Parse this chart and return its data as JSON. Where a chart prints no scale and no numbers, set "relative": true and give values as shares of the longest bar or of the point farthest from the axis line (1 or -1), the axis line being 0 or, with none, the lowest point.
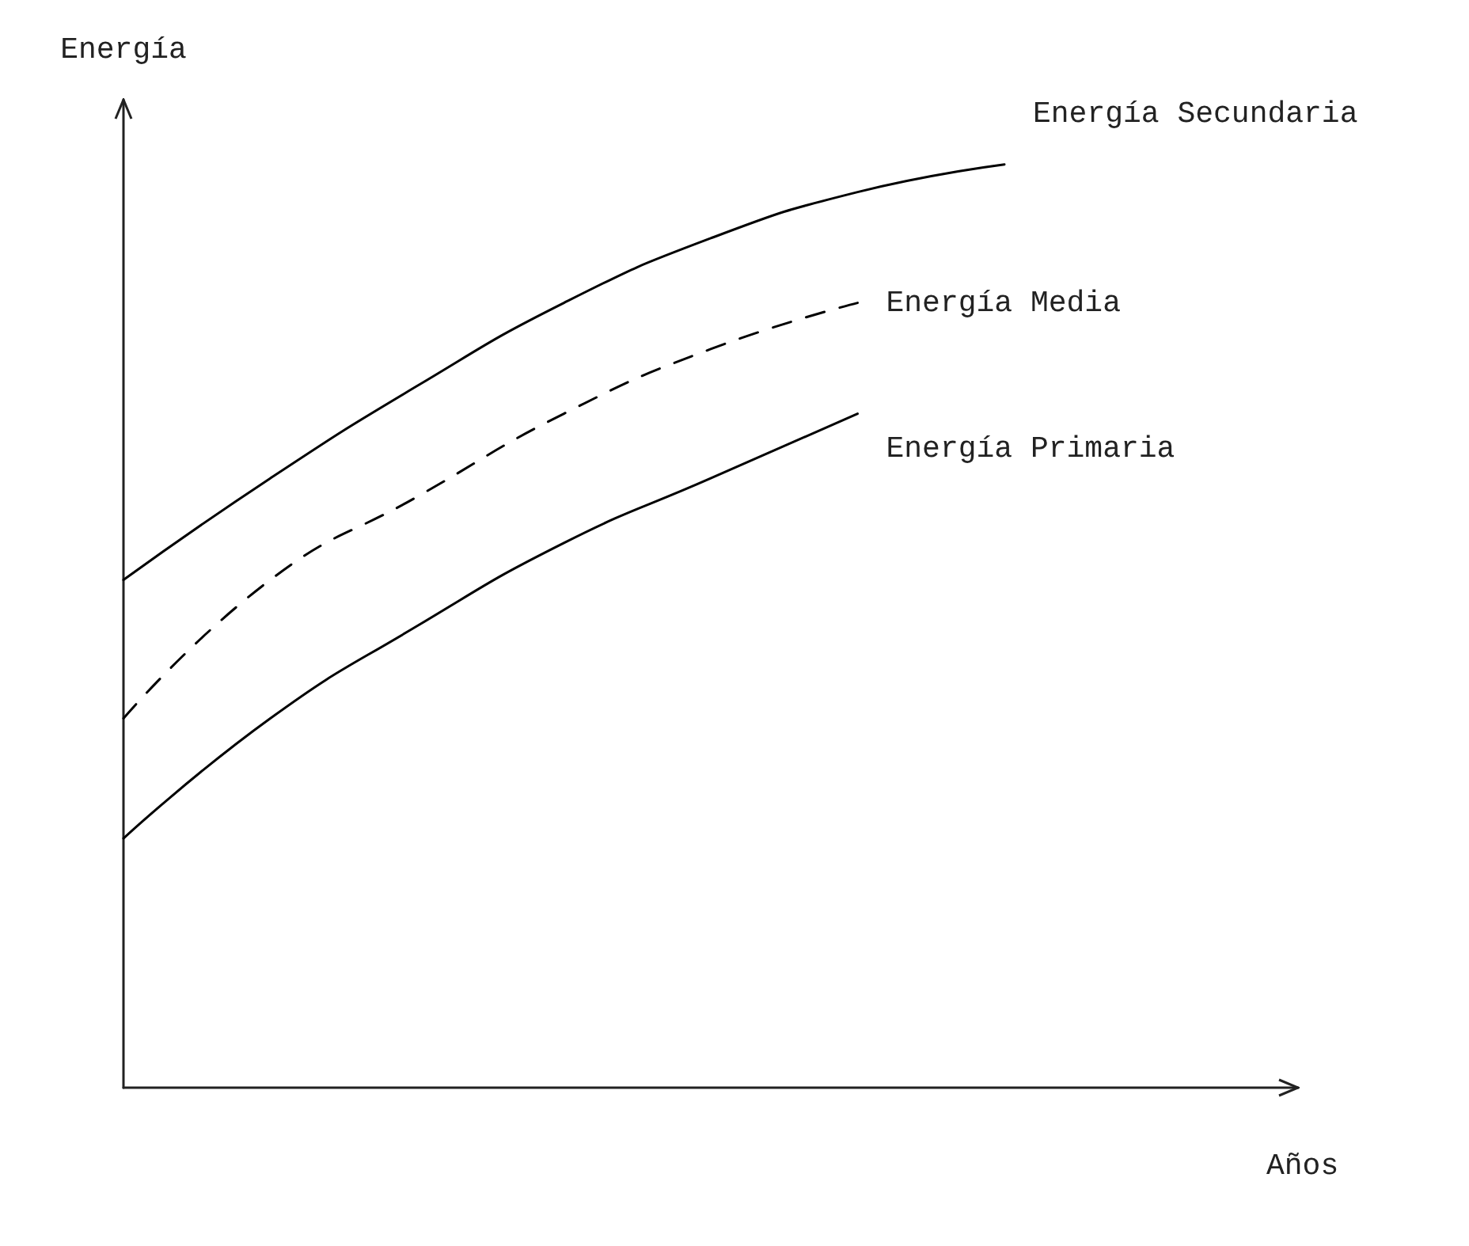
{
  "chart_data": {
    "type": "line",
    "relative": true,
    "xlabel": "Años",
    "ylabel": "Energía",
    "marker": "none",
    "categories": [
      null,
      null,
      null,
      null,
      null,
      null,
      null,
      null,
      null
    ],
    "series": [
      {
        "name": "Energía Secundaria",
        "color": "#000000",
        "line_style": "solid",
        "values": [
          0.55,
          0.66,
          0.76,
          0.85,
          0.92,
          0.97,
          1.0,
          null,
          null
        ]
      },
      {
        "name": "Energía Media",
        "color": "#000000",
        "line_style": "dashed",
        "values": [
          0.4,
          0.55,
          0.64,
          0.73,
          0.8,
          0.85,
          null,
          null,
          null
        ]
      },
      {
        "name": "Energía Primaria",
        "color": "#000000",
        "line_style": "solid",
        "values": [
          0.27,
          0.4,
          0.5,
          0.59,
          0.66,
          0.73,
          null,
          null,
          null
        ]
      }
    ]
  }
}
